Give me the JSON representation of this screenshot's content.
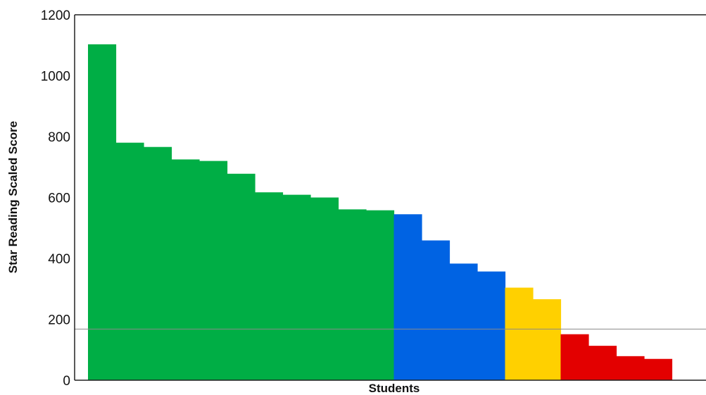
{
  "chart_data": {
    "type": "bar",
    "title": "",
    "xlabel": "Students",
    "ylabel": "Star Reading Scaled Score",
    "ylim": [
      0,
      1200
    ],
    "yticks": [
      0,
      200,
      400,
      600,
      800,
      1000,
      1200
    ],
    "grid": false,
    "legend": "none",
    "reference_line": 168,
    "bar_gap": 0,
    "series": [
      {
        "values": [
          1103,
          780,
          766,
          725,
          720,
          678,
          617,
          609,
          600,
          561,
          558,
          545,
          459,
          383,
          357,
          304,
          266,
          151,
          113,
          79,
          70
        ],
        "colors": [
          "#00ae45",
          "#00ae45",
          "#00ae45",
          "#00ae45",
          "#00ae45",
          "#00ae45",
          "#00ae45",
          "#00ae45",
          "#00ae45",
          "#00ae45",
          "#00ae45",
          "#0063e3",
          "#0063e3",
          "#0063e3",
          "#0063e3",
          "#ffd000",
          "#ffd000",
          "#e30000",
          "#e30000",
          "#e30000",
          "#e30000"
        ]
      }
    ]
  }
}
